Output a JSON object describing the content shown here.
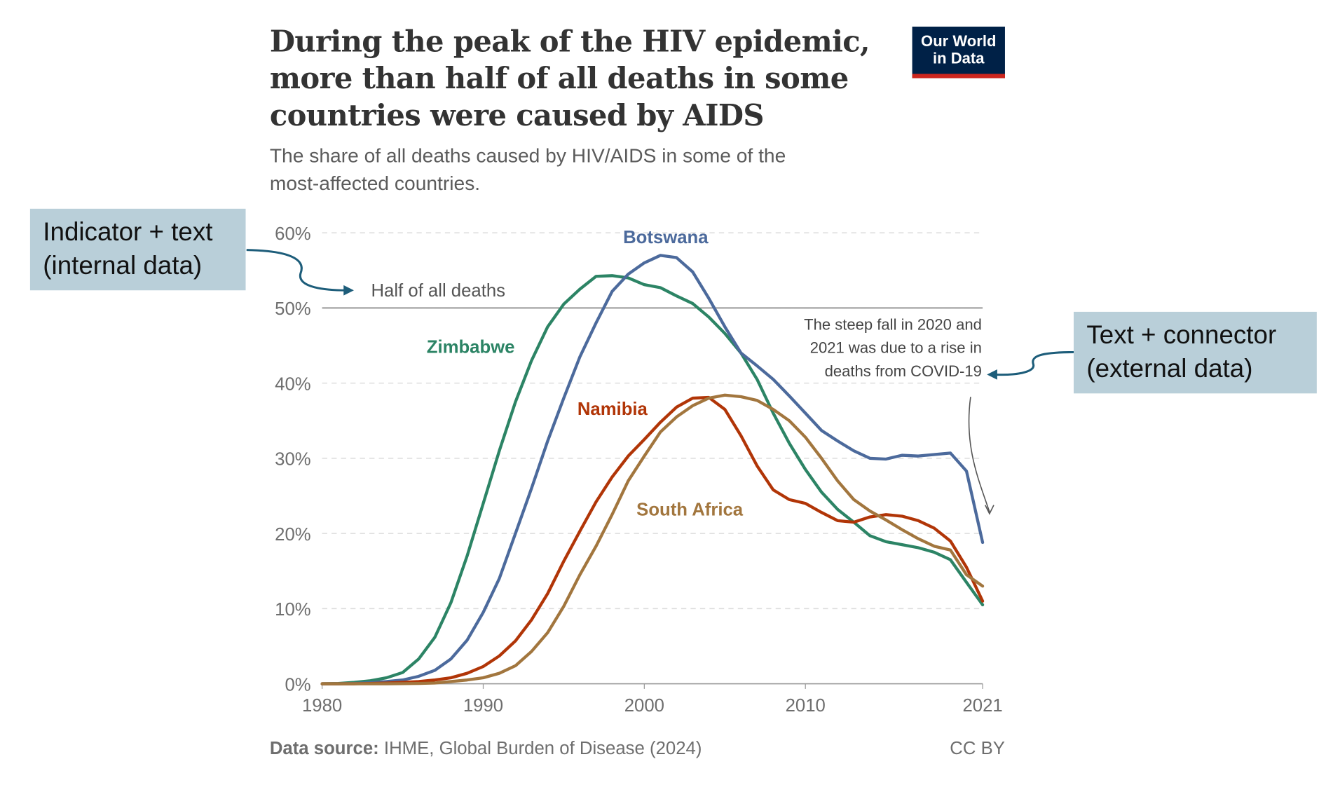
{
  "header": {
    "title": "During the peak of the HIV epidemic, more than half of all deaths in some countries were caused by AIDS",
    "subtitle": "The share of all deaths caused by HIV/AIDS in some of the most-affected countries.",
    "logo": "Our World in Data"
  },
  "footer": {
    "source_label": "Data source:",
    "source": "IHME, Global Burden of Disease (2024)",
    "license": "CC BY"
  },
  "callouts": {
    "left": "Indicator + text (internal data)",
    "right": "Text + connector (external data)"
  },
  "annotations": {
    "half": "Half of all deaths",
    "covid": [
      "The steep fall in 2020 and",
      "2021 was due to a rise in",
      "deaths from COVID-19"
    ]
  },
  "chart_data": {
    "type": "line",
    "title": "During the peak of the HIV epidemic, more than half of all deaths in some countries were caused by AIDS",
    "xlabel": "",
    "ylabel": "",
    "xlim": [
      1980,
      2021
    ],
    "ylim": [
      0,
      60
    ],
    "x_ticks": [
      1980,
      1990,
      2000,
      2010,
      2021
    ],
    "y_ticks": [
      0,
      10,
      20,
      30,
      40,
      50,
      60
    ],
    "y_tick_labels": [
      "0%",
      "10%",
      "20%",
      "30%",
      "40%",
      "50%",
      "60%"
    ],
    "reference_line": 50,
    "x": [
      1980,
      1981,
      1982,
      1983,
      1984,
      1985,
      1986,
      1987,
      1988,
      1989,
      1990,
      1991,
      1992,
      1993,
      1994,
      1995,
      1996,
      1997,
      1998,
      1999,
      2000,
      2001,
      2002,
      2003,
      2004,
      2005,
      2006,
      2007,
      2008,
      2009,
      2010,
      2011,
      2012,
      2013,
      2014,
      2015,
      2016,
      2017,
      2018,
      2019,
      2020,
      2021
    ],
    "series": [
      {
        "name": "Zimbabwe",
        "color": "#2c8465",
        "values": [
          0,
          0.05,
          0.2,
          0.4,
          0.8,
          1.5,
          3.3,
          6.2,
          10.8,
          17,
          24,
          31,
          37.5,
          43,
          47.5,
          50.5,
          52.5,
          54.2,
          54.3,
          54,
          53.1,
          52.7,
          51.6,
          50.6,
          48.8,
          46.6,
          44,
          40.5,
          36,
          32,
          28.5,
          25.5,
          23.2,
          21.5,
          19.7,
          18.9,
          18.5,
          18.1,
          17.5,
          16.5,
          13.5,
          10.5
        ]
      },
      {
        "name": "Botswana",
        "color": "#4c6a9c",
        "values": [
          0,
          0,
          0.05,
          0.15,
          0.3,
          0.5,
          1,
          1.8,
          3.3,
          5.8,
          9.5,
          14,
          20,
          26,
          32.3,
          38,
          43.5,
          48,
          52.2,
          54.5,
          56,
          57,
          56.7,
          54.8,
          51.3,
          47.5,
          44,
          42.3,
          40.5,
          38.3,
          36,
          33.7,
          32.3,
          31,
          30,
          29.9,
          30.4,
          30.3,
          30.5,
          30.7,
          28.3,
          18.8
        ]
      },
      {
        "name": "Namibia",
        "color": "#b13507",
        "values": [
          0,
          0,
          0,
          0.05,
          0.1,
          0.2,
          0.3,
          0.5,
          0.8,
          1.4,
          2.3,
          3.7,
          5.7,
          8.5,
          12,
          16.3,
          20.3,
          24.2,
          27.5,
          30.3,
          32.5,
          34.8,
          36.8,
          38,
          38.1,
          36.5,
          33,
          29,
          25.8,
          24.5,
          24,
          22.8,
          21.7,
          21.5,
          22.2,
          22.5,
          22.3,
          21.7,
          20.7,
          19,
          15.5,
          11
        ]
      },
      {
        "name": "South Africa",
        "color": "#a2763e",
        "values": [
          0,
          0,
          0,
          0,
          0,
          0.02,
          0.05,
          0.1,
          0.3,
          0.5,
          0.8,
          1.4,
          2.4,
          4.3,
          6.8,
          10.3,
          14.5,
          18.3,
          22.5,
          27,
          30.3,
          33.5,
          35.5,
          37,
          38,
          38.4,
          38.2,
          37.7,
          36.5,
          35,
          32.8,
          30,
          27,
          24.5,
          23,
          21.8,
          20.5,
          19.3,
          18.3,
          17.8,
          14.5,
          13
        ]
      }
    ],
    "legend": "inline labels"
  }
}
